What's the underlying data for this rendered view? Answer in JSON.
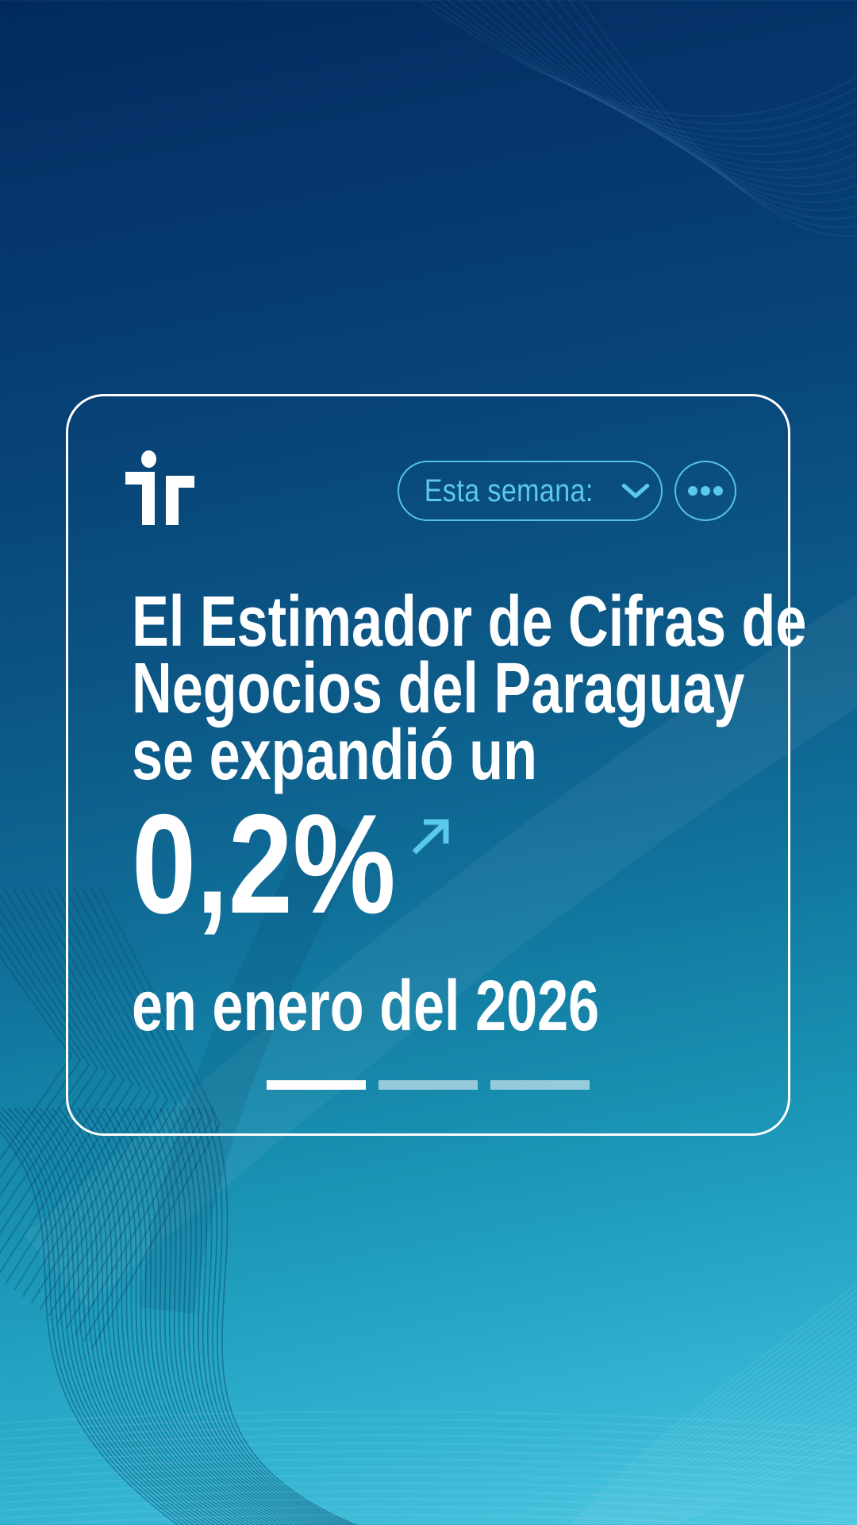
{
  "page": {
    "background_top_color": "#022A60",
    "background_bottom_color": "#52C9E3",
    "decoration": "contour-wave-lines"
  },
  "colors": {
    "accent_cyan": "#5BC9E9",
    "text": "#FFFFFF",
    "card_border": "#FFFFFF",
    "pattern_dark_line": "#084669"
  },
  "card": {
    "logo": {
      "name": "ir",
      "color": "#FFFFFF"
    },
    "filter": {
      "label": "Esta semana:",
      "icon": "chevron-down"
    },
    "menu": {
      "icon": "ellipsis"
    },
    "headline": {
      "line1": "El Estimador de Cifras de",
      "line2": "Negocios del Paraguay",
      "line3": "se expandió un"
    },
    "stat": {
      "value": "0,2%",
      "direction": "up"
    },
    "subline": "en enero del 2026",
    "progress": {
      "segments": 3,
      "active_index": 0
    }
  }
}
